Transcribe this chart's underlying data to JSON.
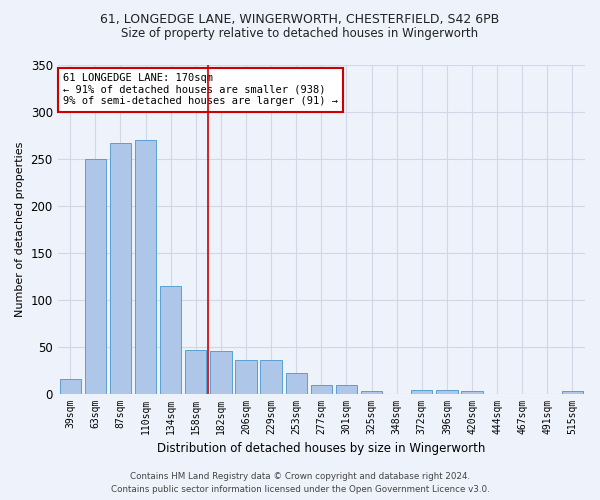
{
  "title1": "61, LONGEDGE LANE, WINGERWORTH, CHESTERFIELD, S42 6PB",
  "title2": "Size of property relative to detached houses in Wingerworth",
  "xlabel": "Distribution of detached houses by size in Wingerworth",
  "ylabel": "Number of detached properties",
  "categories": [
    "39sqm",
    "63sqm",
    "87sqm",
    "110sqm",
    "134sqm",
    "158sqm",
    "182sqm",
    "206sqm",
    "229sqm",
    "253sqm",
    "277sqm",
    "301sqm",
    "325sqm",
    "348sqm",
    "372sqm",
    "396sqm",
    "420sqm",
    "444sqm",
    "467sqm",
    "491sqm",
    "515sqm"
  ],
  "values": [
    16,
    250,
    267,
    270,
    115,
    46,
    45,
    36,
    36,
    22,
    9,
    9,
    3,
    0,
    4,
    4,
    3,
    0,
    0,
    0,
    3
  ],
  "bar_color": "#aec6e8",
  "bar_edge_color": "#5a9fd4",
  "grid_color": "#d0d8e8",
  "background_color": "#eef2fa",
  "vline_x": 5.5,
  "vline_color": "#cc0000",
  "annotation_text": "61 LONGEDGE LANE: 170sqm\n← 91% of detached houses are smaller (938)\n9% of semi-detached houses are larger (91) →",
  "annotation_box_color": "#ffffff",
  "annotation_box_edge": "#cc0000",
  "footer1": "Contains HM Land Registry data © Crown copyright and database right 2024.",
  "footer2": "Contains public sector information licensed under the Open Government Licence v3.0.",
  "ylim": [
    0,
    350
  ],
  "yticks": [
    0,
    50,
    100,
    150,
    200,
    250,
    300,
    350
  ]
}
